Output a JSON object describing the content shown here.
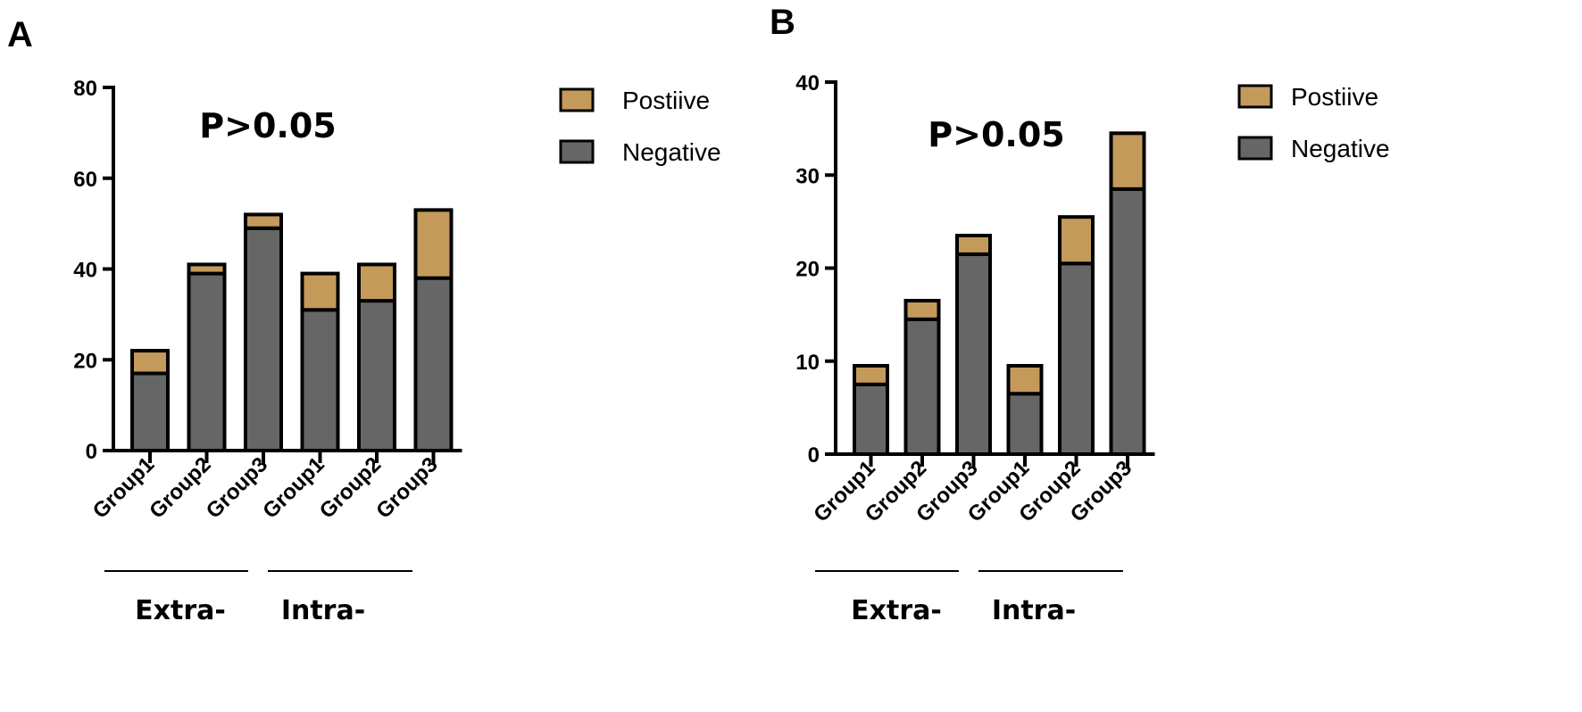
{
  "chart_data": [
    {
      "type": "bar",
      "stacked": true,
      "panel": "A",
      "title": "P>0.05",
      "categories": [
        "Group1",
        "Group2",
        "Group3",
        "Group1",
        "Group2",
        "Group3"
      ],
      "groups": [
        {
          "label": "Extra-",
          "categories": [
            0,
            1,
            2
          ]
        },
        {
          "label": "Intra-",
          "categories": [
            3,
            4,
            5
          ]
        }
      ],
      "series": [
        {
          "name": "Negative",
          "color": "#666666",
          "values": [
            17,
            39,
            49,
            31,
            33,
            38
          ]
        },
        {
          "name": "Postiive",
          "color": "#C49A5A",
          "values": [
            5,
            2,
            3,
            8,
            8,
            15
          ]
        }
      ],
      "ylim": [
        0,
        80
      ],
      "yticks": [
        "0",
        "20",
        "40",
        "60",
        "80"
      ],
      "legend": [
        "Postiive",
        "Negative"
      ],
      "legend_position": "top-right"
    },
    {
      "type": "bar",
      "stacked": true,
      "panel": "B",
      "title": "P>0.05",
      "categories": [
        "Group1",
        "Group2",
        "Group3",
        "Group1",
        "Group2",
        "Group3"
      ],
      "groups": [
        {
          "label": "Extra-",
          "categories": [
            0,
            1,
            2
          ]
        },
        {
          "label": "Intra-",
          "categories": [
            3,
            4,
            5
          ]
        }
      ],
      "series": [
        {
          "name": "Negative",
          "color": "#666666",
          "values": [
            7.5,
            14.5,
            21.5,
            6.5,
            20.5,
            28.5
          ]
        },
        {
          "name": "Postiive",
          "color": "#C49A5A",
          "values": [
            2,
            2,
            2,
            3,
            5,
            6
          ]
        }
      ],
      "ylim": [
        0,
        40
      ],
      "yticks": [
        "0",
        "10",
        "20",
        "30",
        "40"
      ],
      "legend": [
        "Postiive",
        "Negative"
      ],
      "legend_position": "top-right"
    }
  ]
}
